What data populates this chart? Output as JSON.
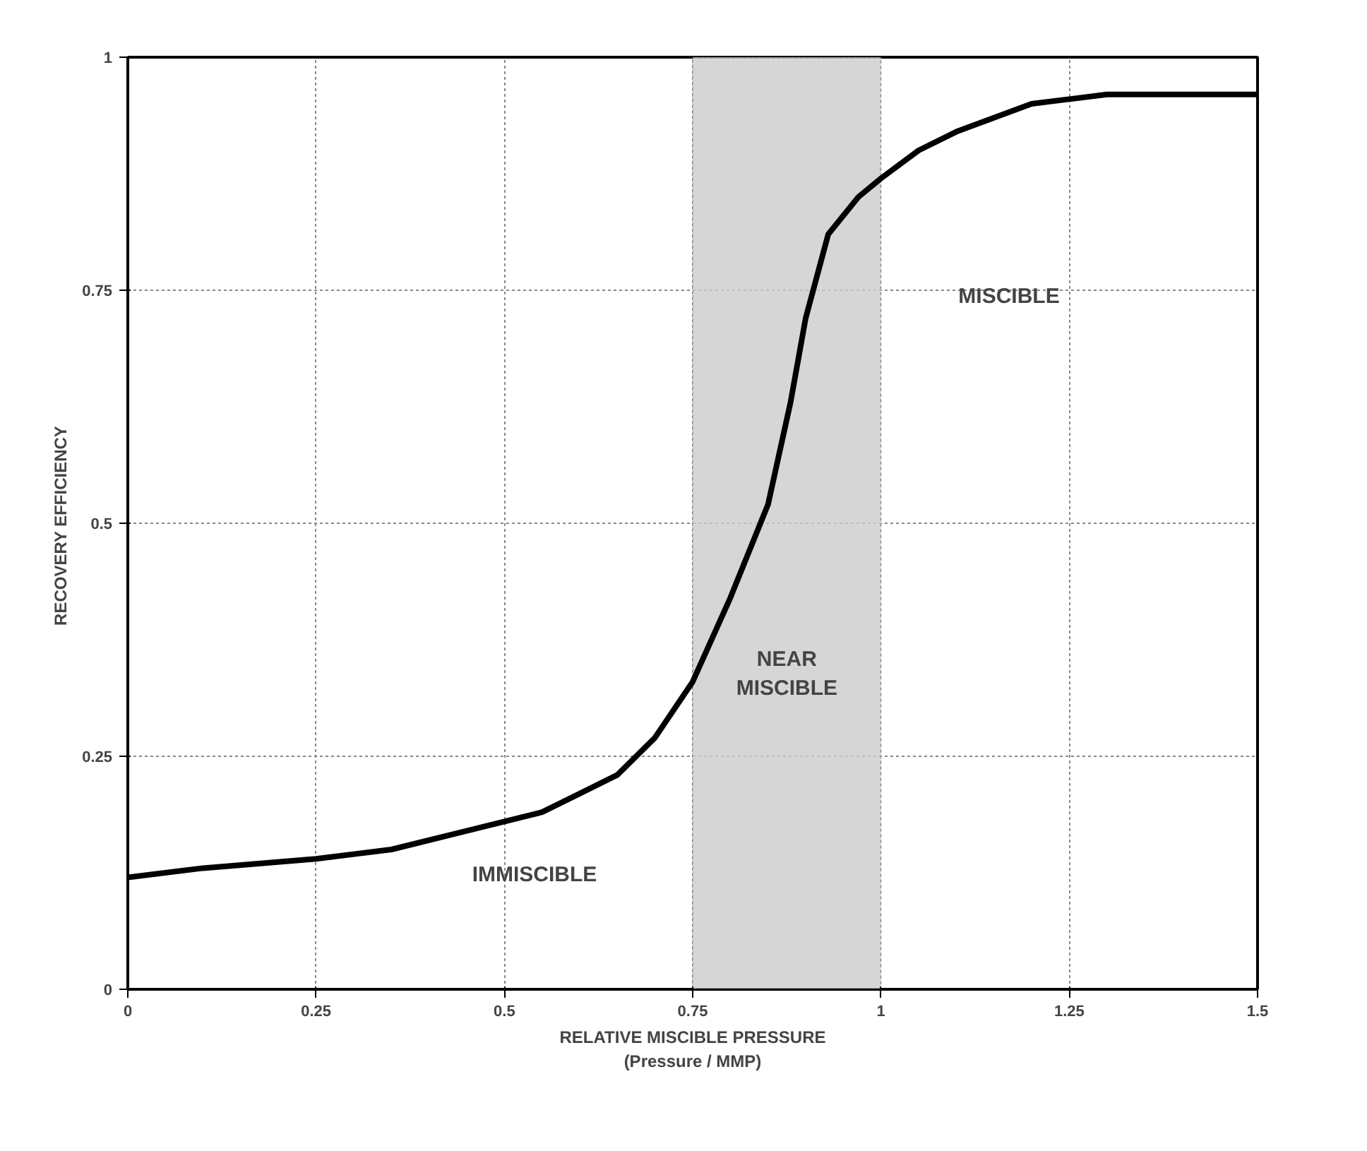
{
  "chart_data": {
    "type": "line",
    "xlabel": "RELATIVE MISCIBLE PRESSURE\n(Pressure / MMP)",
    "ylabel": "RECOVERY  EFFICIENCY",
    "x": [
      0,
      0.1,
      0.25,
      0.35,
      0.45,
      0.55,
      0.6,
      0.65,
      0.7,
      0.75,
      0.8,
      0.85,
      0.88,
      0.9,
      0.93,
      0.97,
      1.0,
      1.05,
      1.1,
      1.15,
      1.2,
      1.25,
      1.3,
      1.5
    ],
    "series": [
      {
        "color": "#000000",
        "values": [
          0.12,
          0.13,
          0.14,
          0.15,
          0.17,
          0.19,
          0.21,
          0.23,
          0.27,
          0.33,
          0.42,
          0.52,
          0.63,
          0.72,
          0.81,
          0.85,
          0.87,
          0.9,
          0.92,
          0.935,
          0.95,
          0.955,
          0.96,
          0.96
        ]
      }
    ],
    "xlim": [
      0,
      1.5
    ],
    "ylim": [
      0,
      1
    ],
    "xticks": [
      0,
      0.25,
      0.5,
      0.75,
      1,
      1.25,
      1.5
    ],
    "yticks": [
      0,
      0.25,
      0.5,
      0.75,
      1
    ],
    "bands": [
      {
        "axis": "x",
        "from": 0.75,
        "to": 1,
        "label": "NEAR\nMISCIBLE",
        "color": "#cccccc"
      }
    ],
    "annotations": [
      "IMMISCIBLE",
      "MISCIBLE"
    ],
    "grid": true,
    "line_style": "solid",
    "marker": "none"
  }
}
